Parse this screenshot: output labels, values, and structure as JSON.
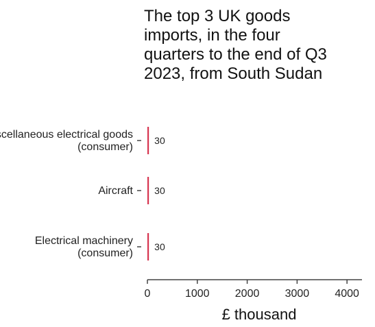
{
  "chart_data": {
    "type": "bar",
    "orientation": "horizontal",
    "title_lines": [
      "The top 3 UK goods",
      "imports, in the four",
      "quarters to the end of Q3",
      "2023, from South Sudan"
    ],
    "categories": [
      [
        "Miscellaneous electrical goods",
        "(consumer)"
      ],
      [
        "Aircraft"
      ],
      [
        "Electrical machinery",
        "(consumer)"
      ]
    ],
    "values": [
      30,
      30,
      30
    ],
    "data_labels": [
      "30",
      "30",
      "30"
    ],
    "xlabel": "£ thousand",
    "xlim": [
      0,
      4300
    ],
    "xticks": [
      0,
      1000,
      2000,
      3000,
      4000
    ],
    "xtick_labels": [
      "0",
      "1000",
      "2000",
      "3000",
      "4000"
    ],
    "bar_color": "#d6334f",
    "grid": false
  }
}
